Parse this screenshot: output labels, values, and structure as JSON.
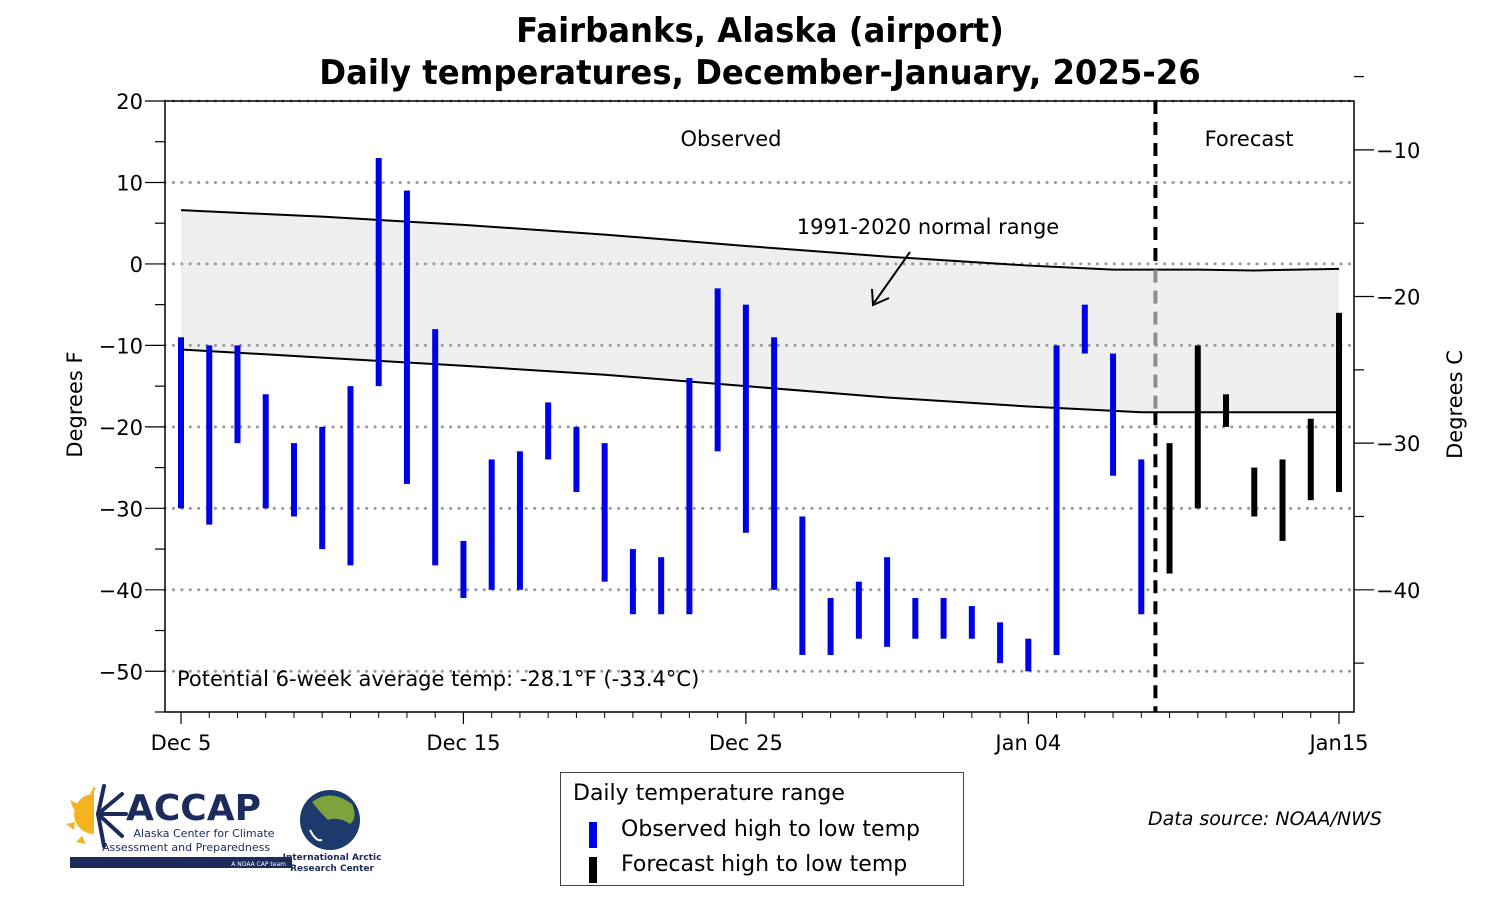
{
  "chart_data": {
    "type": "bar",
    "title": "Fairbanks, Alaska (airport)",
    "subtitle": "Daily temperatures, December-January, 2025-26",
    "ylabel": "Degrees F",
    "ylabel_right": "Degrees C",
    "ylim": [
      -55,
      20
    ],
    "yticks": [
      20,
      10,
      0,
      -10,
      -20,
      -30,
      -40,
      -50
    ],
    "yticks_right": [
      -10,
      -20,
      -30,
      -40
    ],
    "x_start": "Dec 5",
    "x_days": 41,
    "xtick_labels": [
      {
        "day": 0,
        "label": "Dec 5"
      },
      {
        "day": 10,
        "label": "Dec 15"
      },
      {
        "day": 20,
        "label": "Dec 25"
      },
      {
        "day": 30,
        "label": "Jan 04"
      },
      {
        "day": 41,
        "label": "Jan15"
      }
    ],
    "grid": "horizontal dotted",
    "section_labels": {
      "observed": "Observed",
      "forecast": "Forecast"
    },
    "forecast_divider_day": 34.5,
    "normal_range_label": "1991-2020 normal range",
    "annotation": "Potential 6-week average temp: -28.1°F (-33.4°C)",
    "colors": {
      "observed": "#0000e6",
      "forecast": "#000000",
      "normal_fill": "#efefef"
    },
    "normal_high": [
      [
        0,
        6.6
      ],
      [
        5,
        5.8
      ],
      [
        10,
        4.8
      ],
      [
        15,
        3.6
      ],
      [
        20,
        2.2
      ],
      [
        25,
        0.9
      ],
      [
        30,
        -0.2
      ],
      [
        33,
        -0.7
      ],
      [
        36,
        -0.7
      ],
      [
        38,
        -0.8
      ],
      [
        41,
        -0.6
      ]
    ],
    "normal_low": [
      [
        0,
        -10.5
      ],
      [
        5,
        -11.5
      ],
      [
        10,
        -12.5
      ],
      [
        15,
        -13.6
      ],
      [
        20,
        -15.0
      ],
      [
        25,
        -16.4
      ],
      [
        30,
        -17.5
      ],
      [
        34,
        -18.2
      ],
      [
        36,
        -18.2
      ],
      [
        41,
        -18.2
      ]
    ],
    "observed": [
      {
        "date": "Dec 5",
        "high": -9,
        "low": -30
      },
      {
        "date": "Dec 6",
        "high": -10,
        "low": -32
      },
      {
        "date": "Dec 7",
        "high": -10,
        "low": -22
      },
      {
        "date": "Dec 8",
        "high": -16,
        "low": -30
      },
      {
        "date": "Dec 9",
        "high": -22,
        "low": -31
      },
      {
        "date": "Dec 10",
        "high": -20,
        "low": -35
      },
      {
        "date": "Dec 11",
        "high": -15,
        "low": -37
      },
      {
        "date": "Dec 12",
        "high": 13,
        "low": -15
      },
      {
        "date": "Dec 13",
        "high": 9,
        "low": -27
      },
      {
        "date": "Dec 14",
        "high": -8,
        "low": -37
      },
      {
        "date": "Dec 15",
        "high": -34,
        "low": -41
      },
      {
        "date": "Dec 16",
        "high": -24,
        "low": -40
      },
      {
        "date": "Dec 17",
        "high": -23,
        "low": -40
      },
      {
        "date": "Dec 18",
        "high": -17,
        "low": -24
      },
      {
        "date": "Dec 19",
        "high": -20,
        "low": -28
      },
      {
        "date": "Dec 20",
        "high": -22,
        "low": -39
      },
      {
        "date": "Dec 21",
        "high": -35,
        "low": -43
      },
      {
        "date": "Dec 22",
        "high": -36,
        "low": -43
      },
      {
        "date": "Dec 23",
        "high": -14,
        "low": -43
      },
      {
        "date": "Dec 24",
        "high": -3,
        "low": -23
      },
      {
        "date": "Dec 25",
        "high": -5,
        "low": -33
      },
      {
        "date": "Dec 26",
        "high": -9,
        "low": -40
      },
      {
        "date": "Dec 27",
        "high": -31,
        "low": -48
      },
      {
        "date": "Dec 28",
        "high": -41,
        "low": -48
      },
      {
        "date": "Dec 29",
        "high": -39,
        "low": -46
      },
      {
        "date": "Dec 30",
        "high": -36,
        "low": -47
      },
      {
        "date": "Dec 31",
        "high": -41,
        "low": -46
      },
      {
        "date": "Jan 1",
        "high": -41,
        "low": -46
      },
      {
        "date": "Jan 2",
        "high": -42,
        "low": -46
      },
      {
        "date": "Jan 3",
        "high": -44,
        "low": -49
      },
      {
        "date": "Jan 4",
        "high": -46,
        "low": -50
      },
      {
        "date": "Jan 5",
        "high": -10,
        "low": -48
      },
      {
        "date": "Jan 6",
        "high": -5,
        "low": -11
      },
      {
        "date": "Jan 7",
        "high": -11,
        "low": -26
      },
      {
        "date": "Jan 8",
        "high": -24,
        "low": -43
      }
    ],
    "forecast": [
      {
        "date": "Jan 9",
        "high": -22,
        "low": -38
      },
      {
        "date": "Jan 10",
        "high": -10,
        "low": -30
      },
      {
        "date": "Jan 11",
        "high": -16,
        "low": -20
      },
      {
        "date": "Jan 12",
        "high": -25,
        "low": -31
      },
      {
        "date": "Jan 13",
        "high": -24,
        "low": -34
      },
      {
        "date": "Jan 14",
        "high": -19,
        "low": -29
      },
      {
        "date": "Jan 15",
        "high": -6,
        "low": -28
      }
    ]
  },
  "legend": {
    "title": "Daily temperature range",
    "observed": "Observed high to low temp",
    "forecast": "Forecast high to low temp"
  },
  "source": "Data source: NOAA/NWS",
  "logos": {
    "accap_name": "ACCAP",
    "accap_line1": "Alaska Center for Climate",
    "accap_line2": "Assessment and Preparedness",
    "accap_tag": "A NOAA CAP team",
    "iarc_line1": "International Arctic",
    "iarc_line2": "Research Center"
  }
}
